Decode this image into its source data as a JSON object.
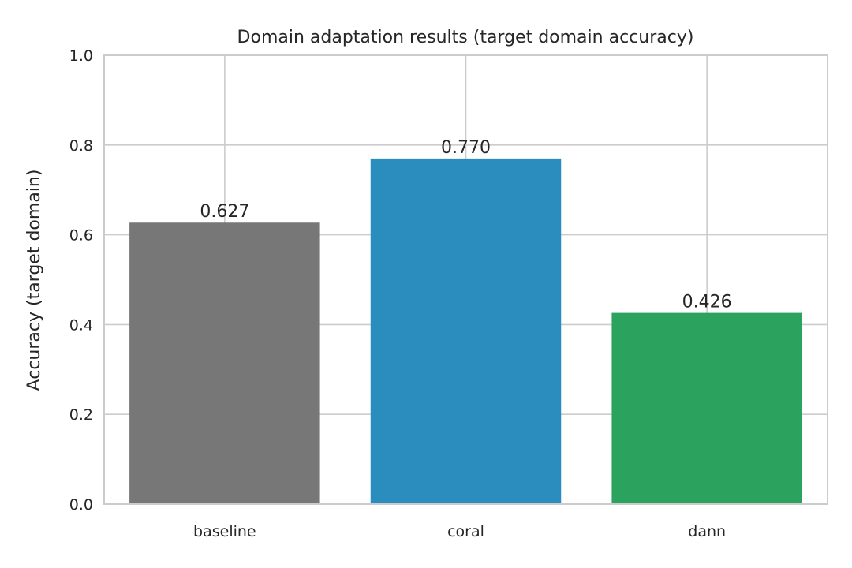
{
  "chart_data": {
    "type": "bar",
    "title": "Domain adaptation results (target domain accuracy)",
    "xlabel": "",
    "ylabel": "Accuracy (target domain)",
    "categories": [
      "baseline",
      "coral",
      "dann"
    ],
    "values": [
      0.627,
      0.77,
      0.426
    ],
    "value_labels": [
      "0.627",
      "0.770",
      "0.426"
    ],
    "colors": [
      "#777777",
      "#2b8cbe",
      "#2ca25f"
    ],
    "ylim": [
      0,
      1.0
    ],
    "yticks": [
      0.0,
      0.2,
      0.4,
      0.6,
      0.8,
      1.0
    ],
    "ytick_labels": [
      "0.0",
      "0.2",
      "0.4",
      "0.6",
      "0.8",
      "1.0"
    ],
    "grid": true,
    "legend": "none"
  }
}
